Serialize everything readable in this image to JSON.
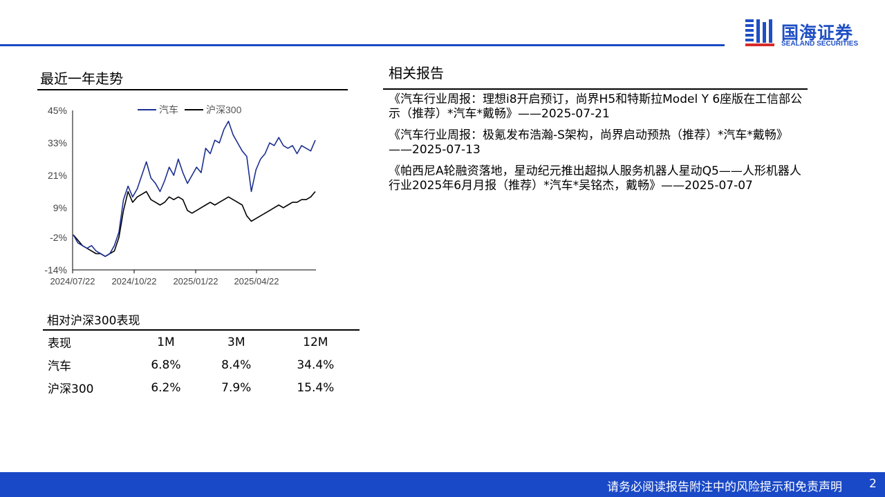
{
  "brand": {
    "name_cn": "国海证券",
    "name_en": "SEALAND SECURITIES",
    "color": "#1a49c7"
  },
  "trend": {
    "title": "最近一年走势"
  },
  "chart_data": {
    "type": "line",
    "xlabels": [
      "2024/07/22",
      "2024/10/22",
      "2025/01/22",
      "2025/04/22"
    ],
    "yticks": [
      "45%",
      "33%",
      "21%",
      "9%",
      "-2%",
      "-14%"
    ],
    "ylim": [
      -14,
      45
    ],
    "legend": [
      "汽车",
      "沪深300"
    ],
    "legend_position": "top",
    "grid": false,
    "series": [
      {
        "name": "汽车",
        "color": "#1b2f8f",
        "values": [
          -1,
          -4,
          -5,
          -6,
          -5,
          -7,
          -8,
          -9,
          -8,
          -5,
          0,
          12,
          17,
          13,
          16,
          21,
          26,
          20,
          18,
          15,
          19,
          24,
          21,
          27,
          22,
          18,
          21,
          24,
          22,
          31,
          29,
          34,
          33,
          38,
          41,
          36,
          33,
          30,
          28,
          15,
          23,
          27,
          29,
          33,
          32,
          35,
          32,
          31,
          32,
          29,
          32,
          31,
          30,
          34
        ]
      },
      {
        "name": "沪深300",
        "color": "#000000",
        "values": [
          -1,
          -3,
          -5,
          -6,
          -7,
          -8,
          -8,
          -9,
          -8,
          -7,
          -2,
          8,
          15,
          11,
          13,
          14,
          15,
          12,
          11,
          10,
          11,
          13,
          12,
          13,
          12,
          8,
          7,
          8,
          9,
          10,
          11,
          10,
          11,
          12,
          13,
          12,
          11,
          10,
          6,
          4,
          5,
          6,
          7,
          8,
          9,
          10,
          9,
          10,
          11,
          11,
          12,
          12,
          13,
          15
        ]
      }
    ]
  },
  "performance": {
    "title": "相对沪深300表现",
    "headers": [
      "表现",
      "1M",
      "3M",
      "12M"
    ],
    "rows": [
      [
        "汽车",
        "6.8%",
        "8.4%",
        "34.4%"
      ],
      [
        "沪深300",
        "6.2%",
        "7.9%",
        "15.4%"
      ]
    ]
  },
  "reports": {
    "title": "相关报告",
    "items": [
      "《汽车行业周报：理想i8开启预订，尚界H5和特斯拉Model Y 6座版在工信部公示（推荐）*汽车*戴畅》——2025-07-21",
      "《汽车行业周报：极氪发布浩瀚-S架构，尚界启动预热（推荐）*汽车*戴畅》——2025-07-13",
      "《帕西尼A轮融资落地，星动纪元推出超拟人服务机器人星动Q5——人形机器人行业2025年6月月报（推荐）*汽车*吴铭杰，戴畅》——2025-07-07"
    ]
  },
  "footer": {
    "disclaimer": "请务必阅读报告附注中的风险提示和免责声明",
    "page": "2"
  }
}
